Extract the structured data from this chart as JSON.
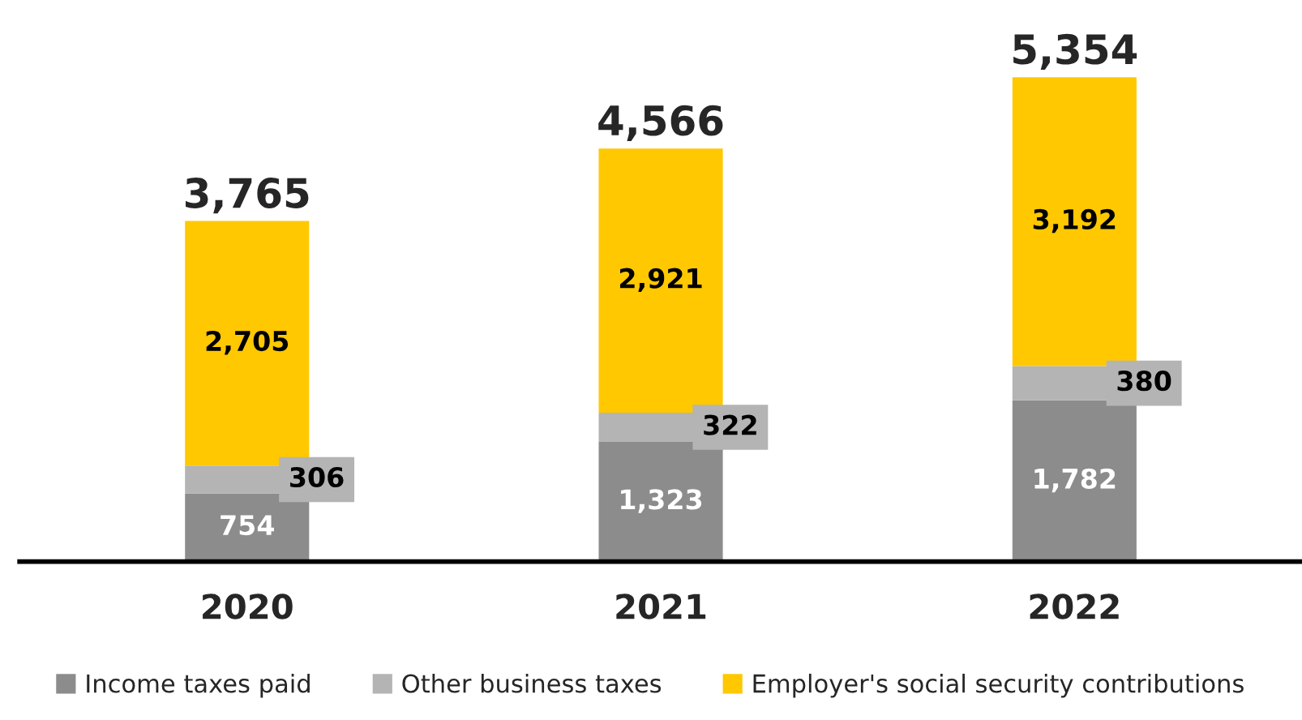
{
  "chart_data": {
    "type": "bar",
    "stacked": true,
    "categories": [
      "2020",
      "2021",
      "2022"
    ],
    "series": [
      {
        "name": "Income taxes paid",
        "color": "#8c8c8c",
        "values": [
          754,
          1323,
          1782
        ],
        "value_labels": [
          "754",
          "1,323",
          "1,782"
        ]
      },
      {
        "name": "Other business taxes",
        "color": "#b4b4b4",
        "values": [
          306,
          322,
          380
        ],
        "value_labels": [
          "306",
          "322",
          "380"
        ]
      },
      {
        "name": "Employer's social security contributions",
        "color": "#ffc800",
        "values": [
          2705,
          2921,
          3192
        ],
        "value_labels": [
          "2,705",
          "2,921",
          "3,192"
        ]
      }
    ],
    "totals": [
      "3,765",
      "4,566",
      "5,354"
    ],
    "legend": "bottom",
    "grid": false
  }
}
